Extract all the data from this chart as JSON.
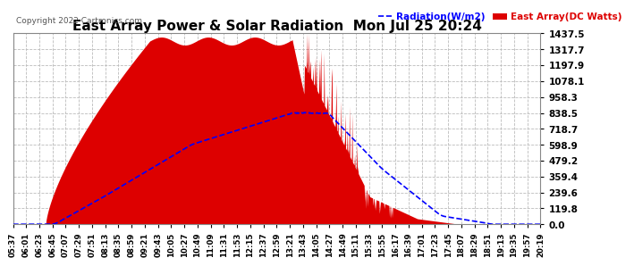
{
  "title": "East Array Power & Solar Radiation  Mon Jul 25 20:24",
  "copyright": "Copyright 2022 Cartronics.com",
  "legend_radiation": "Radiation(W/m2)",
  "legend_east_array": "East Array(DC Watts)",
  "y_ticks": [
    0.0,
    119.8,
    239.6,
    359.4,
    479.2,
    598.9,
    718.7,
    838.5,
    958.3,
    1078.1,
    1197.9,
    1317.7,
    1437.5
  ],
  "ylim": [
    0,
    1437.5
  ],
  "x_labels": [
    "05:37",
    "06:01",
    "06:23",
    "06:45",
    "07:07",
    "07:29",
    "07:51",
    "08:13",
    "08:35",
    "08:59",
    "09:21",
    "09:43",
    "10:05",
    "10:27",
    "10:49",
    "11:09",
    "11:31",
    "11:53",
    "12:15",
    "12:37",
    "12:59",
    "13:21",
    "13:43",
    "14:05",
    "14:27",
    "14:49",
    "15:11",
    "15:33",
    "15:55",
    "16:17",
    "16:39",
    "17:01",
    "17:23",
    "17:45",
    "18:07",
    "18:29",
    "18:51",
    "19:13",
    "19:35",
    "19:57",
    "20:19"
  ],
  "background_color": "#ffffff",
  "plot_bg_color": "#ffffff",
  "grid_color": "#bbbbbb",
  "fill_color": "#dd0000",
  "radiation_color": "#0000ff",
  "east_array_color": "#dd0000",
  "title_color": "#000000"
}
